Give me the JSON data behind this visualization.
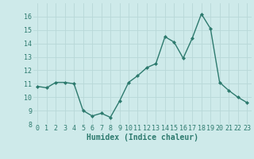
{
  "x": [
    0,
    1,
    2,
    3,
    4,
    5,
    6,
    7,
    8,
    9,
    10,
    11,
    12,
    13,
    14,
    15,
    16,
    17,
    18,
    19,
    20,
    21,
    22,
    23
  ],
  "y": [
    10.8,
    10.7,
    11.1,
    11.1,
    11.0,
    9.0,
    8.6,
    8.8,
    8.5,
    9.7,
    11.1,
    11.6,
    12.2,
    12.5,
    14.5,
    14.1,
    12.9,
    14.4,
    16.2,
    15.1,
    11.1,
    10.5,
    10.0,
    9.6
  ],
  "xlabel": "Humidex (Indice chaleur)",
  "ylim": [
    8,
    17
  ],
  "xlim": [
    -0.5,
    23.5
  ],
  "yticks": [
    8,
    9,
    10,
    11,
    12,
    13,
    14,
    15,
    16
  ],
  "xticks": [
    0,
    1,
    2,
    3,
    4,
    5,
    6,
    7,
    8,
    9,
    10,
    11,
    12,
    13,
    14,
    15,
    16,
    17,
    18,
    19,
    20,
    21,
    22,
    23
  ],
  "line_color": "#2d7a6e",
  "marker": "D",
  "marker_size": 2.0,
  "background_color": "#ceeaea",
  "grid_color": "#b8d8d8",
  "line_width": 1.0,
  "xlabel_fontsize": 7.0,
  "tick_fontsize": 6.0
}
